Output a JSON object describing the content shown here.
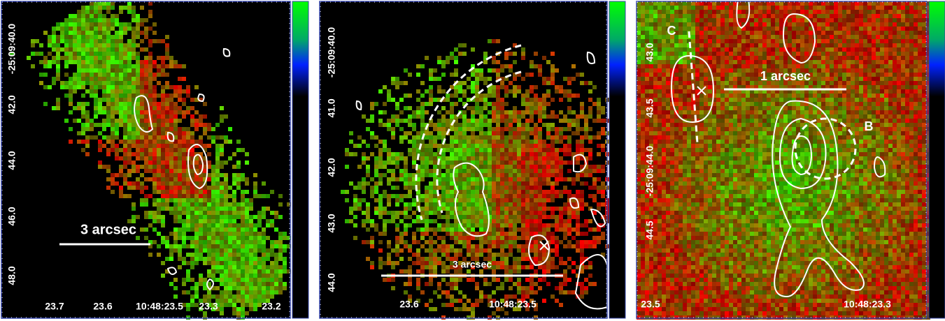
{
  "panels": [
    {
      "x_labels": [
        "23.7",
        "23.6",
        "10:48:23.5",
        "23.3",
        "23.2"
      ],
      "y_labels": [
        "-25:09:40.0",
        "42.0",
        "44.0",
        "46.0",
        "48.0"
      ],
      "scale_bar": "3 arcsec",
      "labels": []
    },
    {
      "x_labels": [
        "23.6",
        "10:48:23.5"
      ],
      "y_labels": [
        "-25:09:40.0",
        "41.0",
        "42.0",
        "43.0",
        "44.0"
      ],
      "scale_bar": "3 arcsec",
      "labels": []
    },
    {
      "x_labels": [
        "23.5",
        "10:48:23.3"
      ],
      "y_labels": [
        "43.0",
        "43.5",
        "-25:09:44.0",
        "44.5"
      ],
      "scale_bar": "1 arcsec",
      "labels": [
        "C",
        "B"
      ]
    }
  ]
}
